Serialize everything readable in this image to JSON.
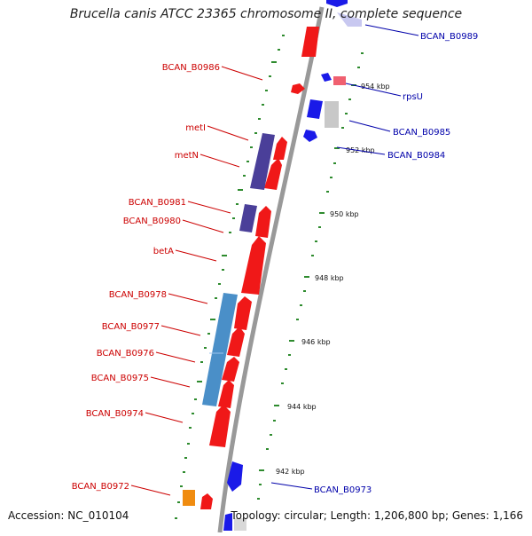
{
  "title": "Brucella canis ATCC 23365 chromosome II, complete sequence",
  "accession": "Accession: NC_010104",
  "topology": "Topology: circular; Length: 1,206,800 bp; Genes: 1,166",
  "colors": {
    "forward_gene": "#f01818",
    "reverse_gene": "#1a1ae8",
    "metabolism": "#4a3f99",
    "transport": "#4a8fc8",
    "highlight": "#f08c10",
    "backbone": "#9a9a9a",
    "ticks": "#2e8b2e",
    "left_labels": "#cc0000",
    "right_labels": "#0000aa"
  },
  "scale_labels": [
    "954 kbp",
    "952 kbp",
    "950 kbp",
    "948 kbp",
    "946 kbp",
    "944 kbp",
    "942 kbp"
  ],
  "left_genes": [
    "BCAN_B0986",
    "metI",
    "metN",
    "BCAN_B0981",
    "BCAN_B0980",
    "betA",
    "BCAN_B0978",
    "BCAN_B0977",
    "BCAN_B0976",
    "BCAN_B0975",
    "BCAN_B0974",
    "BCAN_B0972"
  ],
  "right_genes": [
    "BCAN_B0989",
    "rpsU",
    "BCAN_B0985",
    "BCAN_B0984",
    "BCAN_B0973"
  ]
}
